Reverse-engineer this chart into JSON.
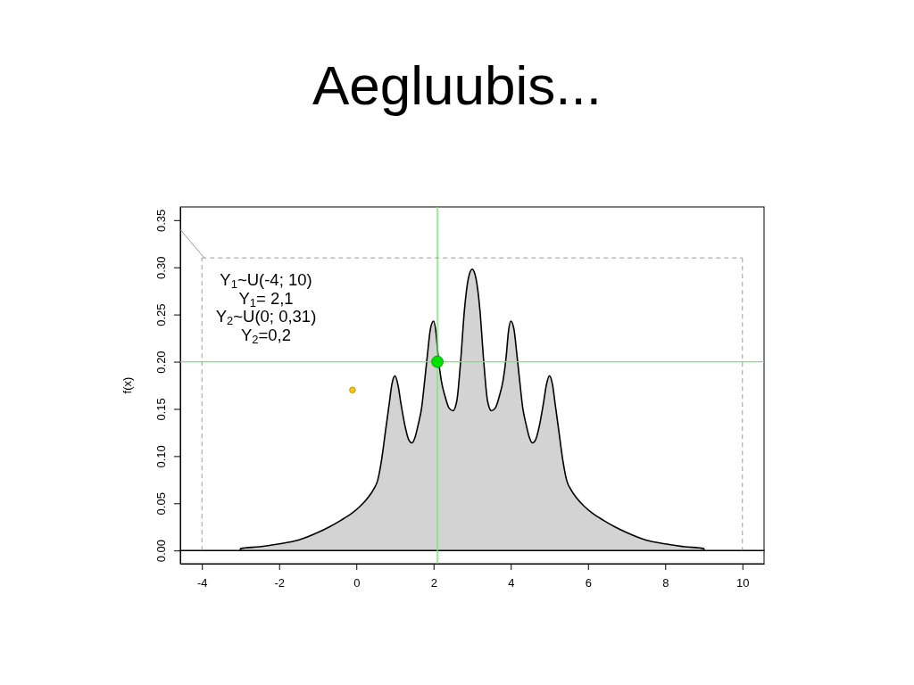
{
  "chart_data": {
    "type": "area",
    "title": "Aegluubis...",
    "ylabel": "f(x)",
    "xlim": [
      -4.56,
      10.56
    ],
    "ylim": [
      -0.014,
      0.364
    ],
    "xticks": [
      -4,
      -2,
      0,
      2,
      4,
      6,
      8,
      10
    ],
    "yticks": [
      {
        "value": 0,
        "label": "0.00"
      },
      {
        "value": 0.05,
        "label": "0.05"
      },
      {
        "value": 0.1,
        "label": "0.10"
      },
      {
        "value": 0.15,
        "label": "0.15"
      },
      {
        "value": 0.2,
        "label": "0.20"
      },
      {
        "value": 0.25,
        "label": "0.25"
      },
      {
        "value": 0.3,
        "label": "0.30"
      },
      {
        "value": 0.35,
        "label": "0.35"
      }
    ],
    "series": [
      {
        "color": "#d3d3d3",
        "x": [
          -4.56,
          -3.01,
          -3,
          -2.5,
          -2,
          -1.5,
          -1,
          -0.7,
          -0.4,
          -0.1,
          0.1,
          0.3,
          0.45,
          0.55,
          0.65,
          0.75,
          0.85,
          0.92,
          1,
          1.08,
          1.15,
          1.26,
          1.35,
          1.44,
          1.52,
          1.6,
          1.69,
          1.77,
          1.84,
          1.92,
          2,
          2.06,
          2.12,
          2.2,
          2.3,
          2.4,
          2.5,
          2.6,
          2.7,
          2.8,
          2.9,
          3,
          3.1,
          3.2,
          3.3,
          3.4,
          3.5,
          3.6,
          3.7,
          3.8,
          3.88,
          3.94,
          4,
          4.08,
          4.16,
          4.23,
          4.31,
          4.4,
          4.48,
          4.56,
          4.65,
          4.74,
          4.85,
          4.92,
          5,
          5.08,
          5.15,
          5.25,
          5.35,
          5.45,
          5.55,
          5.7,
          5.9,
          6.1,
          6.4,
          6.7,
          7,
          7.5,
          8,
          8.5,
          9,
          9.01,
          10.56
        ],
        "values": [
          0,
          0,
          0.002,
          0.004,
          0.007,
          0.011,
          0.019,
          0.025,
          0.032,
          0.04,
          0.047,
          0.056,
          0.065,
          0.074,
          0.095,
          0.125,
          0.155,
          0.176,
          0.185,
          0.175,
          0.157,
          0.132,
          0.118,
          0.114,
          0.12,
          0.133,
          0.151,
          0.18,
          0.207,
          0.235,
          0.243,
          0.232,
          0.205,
          0.18,
          0.163,
          0.151,
          0.148,
          0.158,
          0.2,
          0.255,
          0.288,
          0.298,
          0.288,
          0.255,
          0.2,
          0.158,
          0.148,
          0.151,
          0.163,
          0.18,
          0.205,
          0.232,
          0.243,
          0.235,
          0.207,
          0.18,
          0.151,
          0.133,
          0.12,
          0.114,
          0.118,
          0.132,
          0.157,
          0.175,
          0.185,
          0.176,
          0.155,
          0.125,
          0.095,
          0.074,
          0.065,
          0.056,
          0.047,
          0.04,
          0.032,
          0.025,
          0.019,
          0.011,
          0.007,
          0.004,
          0.002,
          0,
          0
        ]
      },
      {
        "type": "line",
        "color": "#999999",
        "line_style": "dashed",
        "x": [
          -4,
          -4
        ],
        "values": [
          0,
          0.31
        ]
      },
      {
        "type": "line",
        "color": "#999999",
        "line_style": "dashed",
        "x": [
          -4,
          10
        ],
        "values": [
          0.31,
          0.31
        ]
      },
      {
        "type": "line",
        "color": "#999999",
        "line_style": "dashed",
        "x": [
          10,
          10
        ],
        "values": [
          0.31,
          0
        ]
      },
      {
        "type": "line",
        "color": "#999999",
        "x": [
          -4.56,
          -3.94
        ],
        "values": [
          0.34,
          0.31
        ]
      },
      {
        "type": "bubble",
        "x": [
          -0.1,
          2.1
        ],
        "values": [
          0.17,
          0.2
        ],
        "sizes": [
          0.25,
          1
        ],
        "colors": [
          "#ffc800",
          "#00e000"
        ]
      }
    ],
    "ref_lines": [
      {
        "axis": "x",
        "value": 2.1,
        "color": "#66ee66"
      },
      {
        "axis": "y",
        "value": 0.2,
        "color": "#66ee66"
      }
    ],
    "annotations": [
      "Y$_{1}$~U(-4; 10)",
      "Y$_{1}$= 2,1",
      "Y$_{2}$~U(0; 0,31)",
      "Y$_{2}$=0,2"
    ]
  }
}
